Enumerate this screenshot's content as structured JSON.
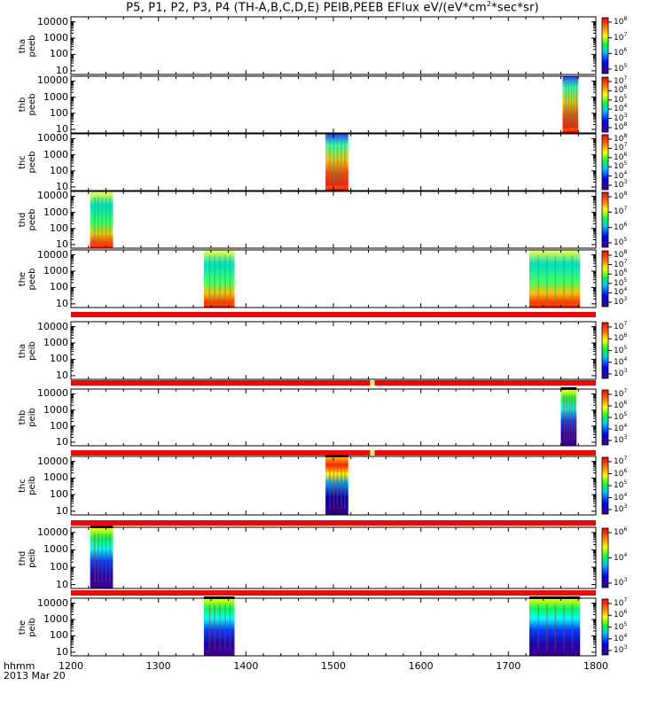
{
  "title": {
    "prefix": "P5, P1, P2, P3, P4 (TH-A,B,C,D,E) PEIB,PEEB EFlux eV/(eV*cm",
    "sup": "2",
    "suffix": "*sec*sr)"
  },
  "footer": {
    "line1": "hhmm",
    "line2": "2013 Mar 20"
  },
  "chart_data": {
    "type": "heatmap",
    "title": "P5, P1, P2, P3, P4 (TH-A,B,C,D,E) PEIB,PEEB EFlux eV/(eV*cm2*sec*sr)",
    "xlabel": "hhmm",
    "date": "2013 Mar 20",
    "xlim": [
      1200,
      1800
    ],
    "x_ticks": [
      "1200",
      "1300",
      "1400",
      "1500",
      "1600",
      "1700",
      "1800"
    ],
    "yscale": "log",
    "y_ticks": [
      "10",
      "100",
      "1000",
      "10000"
    ],
    "colorscale": "rainbow (purple-blue-green-yellow-red)",
    "panels": [
      {
        "probe": "tha",
        "product": "peeb",
        "cb_ticks": [
          "10",
          "10",
          "10",
          "10"
        ],
        "cb_exps": [
          "8",
          "7",
          "6",
          "5"
        ],
        "bursts": []
      },
      {
        "probe": "thb",
        "product": "peeb",
        "cb_ticks": [
          "10",
          "10",
          "10",
          "10",
          "10",
          "10"
        ],
        "cb_exps": [
          "7",
          "6",
          "5",
          "4",
          "3",
          "8"
        ],
        "bursts": [
          {
            "start": 1762,
            "end": 1780
          }
        ]
      },
      {
        "probe": "thc",
        "product": "peeb",
        "cb_ticks": [
          "10",
          "10",
          "10",
          "10",
          "10",
          "10"
        ],
        "cb_exps": [
          "8",
          "7",
          "6",
          "5",
          "4",
          "3"
        ],
        "bursts": [
          {
            "start": 1491,
            "end": 1517
          }
        ]
      },
      {
        "probe": "thd",
        "product": "peeb",
        "cb_ticks": [
          "10",
          "10",
          "10",
          "10"
        ],
        "cb_exps": [
          "8",
          "7",
          "6",
          "5"
        ],
        "bursts": [
          {
            "start": 1222,
            "end": 1248
          }
        ]
      },
      {
        "probe": "the",
        "product": "peeb",
        "cb_ticks": [
          "10",
          "10",
          "10",
          "10",
          "10",
          "10"
        ],
        "cb_exps": [
          "8",
          "7",
          "6",
          "5",
          "4",
          "3"
        ],
        "bursts": [
          {
            "start": 1352,
            "end": 1387
          },
          {
            "start": 1724,
            "end": 1782
          }
        ]
      },
      {
        "probe": "tha",
        "product": "peib",
        "cb_ticks": [
          "10",
          "10",
          "10",
          "10",
          "10"
        ],
        "cb_exps": [
          "7",
          "6",
          "5",
          "4",
          "3"
        ],
        "bursts": []
      },
      {
        "probe": "thb",
        "product": "peib",
        "cb_ticks": [
          "10",
          "10",
          "10",
          "10",
          "10"
        ],
        "cb_exps": [
          "7",
          "6",
          "5",
          "4",
          "3"
        ],
        "bursts": [
          {
            "start": 1760,
            "end": 1778
          }
        ]
      },
      {
        "probe": "thc",
        "product": "peib",
        "cb_ticks": [
          "10",
          "10",
          "10",
          "10",
          "10"
        ],
        "cb_exps": [
          "7",
          "6",
          "5",
          "4",
          "3"
        ],
        "bursts": [
          {
            "start": 1491,
            "end": 1517
          }
        ]
      },
      {
        "probe": "thd",
        "product": "peib",
        "cb_ticks": [
          "10",
          "10",
          "10"
        ],
        "cb_exps": [
          "6",
          "4",
          "3"
        ],
        "bursts": [
          {
            "start": 1222,
            "end": 1248
          }
        ]
      },
      {
        "probe": "the",
        "product": "peib",
        "cb_ticks": [
          "10",
          "10",
          "10",
          "10",
          "10"
        ],
        "cb_exps": [
          "7",
          "6",
          "5",
          "4",
          "3"
        ],
        "bursts": [
          {
            "start": 1352,
            "end": 1387
          },
          {
            "start": 1724,
            "end": 1782
          }
        ]
      }
    ]
  }
}
